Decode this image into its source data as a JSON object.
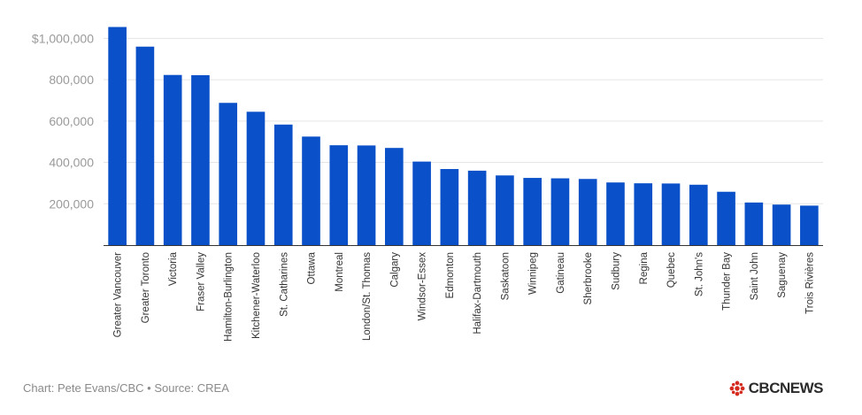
{
  "footer": {
    "source": "Chart: Pete Evans/CBC • Source: CREA",
    "brand_text": "CBCNEWS",
    "brand_color": "#d52b1e"
  },
  "colors": {
    "bar": "#0a50c8",
    "grid": "#e5e5e5",
    "axis": "#333333"
  },
  "chart_data": {
    "type": "bar",
    "title": "",
    "xlabel": "",
    "ylabel": "",
    "ylim": [
      0,
      1100000
    ],
    "yticks": [
      200000,
      400000,
      600000,
      800000,
      1000000
    ],
    "ytick_labels": [
      "200,000",
      "400,000",
      "600,000",
      "800,000",
      "$1,000,000"
    ],
    "grid": true,
    "categories": [
      "Greater Vancouver",
      "Greater Toronto",
      "Victoria",
      "Fraser Valley",
      "Hamilton-Burlington",
      "Kitchener-Waterloo",
      "St. Catharines",
      "Ottawa",
      "Montreal",
      "London/St. Thomas",
      "Calgary",
      "Windsor-Essex",
      "Edmonton",
      "Halifax-Dartmouth",
      "Saskatoon",
      "Winnipeg",
      "Gatineau",
      "Sherbrooke",
      "Sudbury",
      "Regina",
      "Quebec",
      "St. John's",
      "Thunder Bay",
      "Saint John",
      "Saguenay",
      "Trois Rivières"
    ],
    "values": [
      1055000,
      960000,
      823000,
      822000,
      688000,
      645000,
      583000,
      525000,
      483000,
      482000,
      470000,
      404000,
      368000,
      360000,
      337000,
      325000,
      323000,
      320000,
      303000,
      299000,
      298000,
      292000,
      258000,
      206000,
      196000,
      191000
    ]
  }
}
